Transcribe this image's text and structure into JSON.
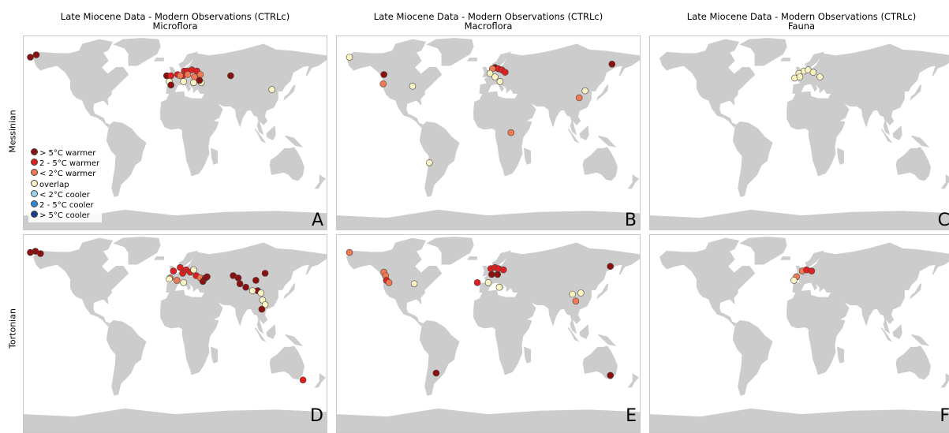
{
  "columns": [
    {
      "title": "Late Miocene Data - Modern Observations (CTRLc)",
      "subtitle": "Microflora"
    },
    {
      "title": "Late Miocene Data - Modern Observations (CTRLc)",
      "subtitle": "Macroflora"
    },
    {
      "title": "Late Miocene Data - Modern Observations (CTRLc)",
      "subtitle": "Fauna"
    }
  ],
  "rows": [
    "Messinian",
    "Tortonian"
  ],
  "panel_letters": [
    "A",
    "B",
    "C",
    "D",
    "E",
    "F"
  ],
  "legend": [
    {
      "label": "> 5°C warmer",
      "color": "#8b1010"
    },
    {
      "label": "2 - 5°C warmer",
      "color": "#e02020"
    },
    {
      "label": "< 2°C warmer",
      "color": "#f27a52"
    },
    {
      "label": "overlap",
      "color": "#fcf4c2"
    },
    {
      "label": "< 2°C cooler",
      "color": "#9ad4ea"
    },
    {
      "label": "2 - 5°C cooler",
      "color": "#2f86d9"
    },
    {
      "label": "> 5°C cooler",
      "color": "#143c8f"
    }
  ],
  "colors": {
    "land": "#cccccc",
    "ocean": "#ffffff",
    "marker_outline": "#444444"
  },
  "chart_data": {
    "type": "scatter",
    "note": "site markers as longitude/latitude (degrees) with anomaly category index into legend",
    "panels": [
      {
        "letter": "A",
        "sites": [
          [
            -172,
            67,
            0
          ],
          [
            -165,
            69,
            0
          ],
          [
            -10,
            51,
            0
          ],
          [
            -5,
            51,
            1
          ],
          [
            3,
            52,
            1
          ],
          [
            9,
            51,
            1
          ],
          [
            11,
            55,
            1
          ],
          [
            14,
            55,
            1
          ],
          [
            20,
            56,
            1
          ],
          [
            26,
            55,
            1
          ],
          [
            6,
            51,
            2
          ],
          [
            15,
            52,
            2
          ],
          [
            23,
            50,
            2
          ],
          [
            30,
            52,
            2
          ],
          [
            -7,
            46,
            3
          ],
          [
            10,
            46,
            3
          ],
          [
            22,
            45,
            3
          ],
          [
            31,
            45,
            3
          ],
          [
            115,
            39,
            3
          ],
          [
            -5,
            43,
            0
          ],
          [
            29,
            47,
            0
          ],
          [
            66,
            51,
            0
          ]
        ]
      },
      {
        "letter": "B",
        "sites": [
          [
            -165,
            67,
            3
          ],
          [
            -124,
            52,
            0
          ],
          [
            -125,
            44,
            2
          ],
          [
            -90,
            42,
            3
          ],
          [
            8,
            58,
            0
          ],
          [
            12,
            57,
            1
          ],
          [
            16,
            56,
            1
          ],
          [
            5,
            57,
            2
          ],
          [
            20,
            54,
            1
          ],
          [
            2,
            53,
            3
          ],
          [
            8,
            50,
            3
          ],
          [
            14,
            46,
            3
          ],
          [
            147,
            61,
            0
          ],
          [
            115,
            38,
            3
          ],
          [
            108,
            32,
            2
          ],
          [
            27,
            2,
            2
          ],
          [
            -70,
            -24,
            3
          ]
        ]
      },
      {
        "letter": "C",
        "sites": [
          [
            -3,
            53,
            3
          ],
          [
            3,
            55,
            3
          ],
          [
            8,
            56,
            3
          ],
          [
            14,
            54,
            3
          ],
          [
            -8,
            49,
            3
          ],
          [
            22,
            50,
            3
          ],
          [
            -2,
            50,
            3
          ]
        ]
      },
      {
        "letter": "D",
        "sites": [
          [
            -172,
            70,
            0
          ],
          [
            -166,
            71,
            0
          ],
          [
            -160,
            69,
            0
          ],
          [
            -2,
            54,
            1
          ],
          [
            6,
            57,
            1
          ],
          [
            9,
            52,
            1
          ],
          [
            13,
            55,
            1
          ],
          [
            18,
            53,
            1
          ],
          [
            25,
            50,
            1
          ],
          [
            -6,
            48,
            2
          ],
          [
            2,
            46,
            2
          ],
          [
            30,
            48,
            2
          ],
          [
            -7,
            47,
            3
          ],
          [
            10,
            44,
            3
          ],
          [
            22,
            55,
            3
          ],
          [
            33,
            45,
            0
          ],
          [
            36,
            48,
            0
          ],
          [
            38,
            49,
            0
          ],
          [
            69,
            50,
            0
          ],
          [
            75,
            48,
            0
          ],
          [
            77,
            43,
            0
          ],
          [
            84,
            40,
            0
          ],
          [
            96,
            46,
            0
          ],
          [
            107,
            52,
            0
          ],
          [
            98,
            37,
            0
          ],
          [
            102,
            35,
            3
          ],
          [
            104,
            29,
            3
          ],
          [
            92,
            37,
            3
          ],
          [
            107,
            25,
            3
          ],
          [
            103,
            21,
            0
          ],
          [
            152,
            -40,
            1
          ]
        ]
      },
      {
        "letter": "E",
        "sites": [
          [
            -165,
            70,
            2
          ],
          [
            -124,
            53,
            2
          ],
          [
            -122,
            50,
            2
          ],
          [
            -121,
            46,
            1
          ],
          [
            -118,
            44,
            2
          ],
          [
            -88,
            43,
            3
          ],
          [
            3,
            56,
            1
          ],
          [
            8,
            57,
            1
          ],
          [
            12,
            56,
            1
          ],
          [
            18,
            55,
            1
          ],
          [
            4,
            51,
            0
          ],
          [
            11,
            51,
            0
          ],
          [
            -13,
            44,
            1
          ],
          [
            0,
            44,
            3
          ],
          [
            13,
            40,
            3
          ],
          [
            145,
            58,
            0
          ],
          [
            100,
            34,
            3
          ],
          [
            110,
            35,
            3
          ],
          [
            104,
            28,
            2
          ],
          [
            -62,
            -34,
            0
          ],
          [
            145,
            -36,
            0
          ]
        ]
      },
      {
        "letter": "F",
        "sites": [
          [
            1,
            54,
            2
          ],
          [
            6,
            55,
            1
          ],
          [
            12,
            54,
            1
          ],
          [
            -6,
            49,
            2
          ],
          [
            -9,
            46,
            3
          ]
        ]
      }
    ]
  }
}
